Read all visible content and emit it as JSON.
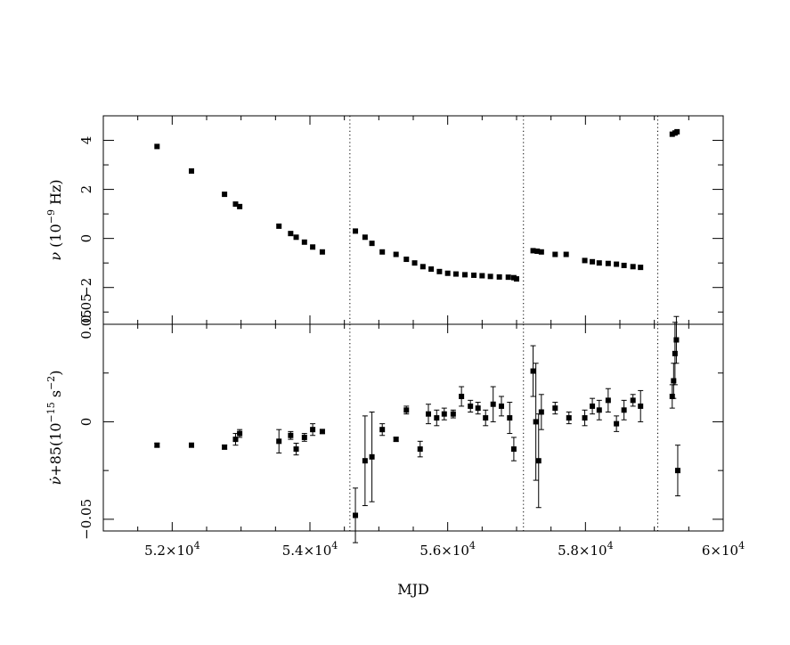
{
  "chart_data": {
    "type": "scatter",
    "x_label": "MJD",
    "x_range": [
      51000,
      60000
    ],
    "x_ticks": [
      52000,
      54000,
      56000,
      58000,
      60000
    ],
    "x_tick_labels": [
      {
        "mantissa": "5.2",
        "times": "×10",
        "exp": "4"
      },
      {
        "mantissa": "5.4",
        "times": "×10",
        "exp": "4"
      },
      {
        "mantissa": "5.6",
        "times": "×10",
        "exp": "4"
      },
      {
        "mantissa": "5.8",
        "times": "×10",
        "exp": "4"
      },
      {
        "mantissa": "6",
        "times": "×10",
        "exp": "4"
      }
    ],
    "glitch_epochs": [
      54580,
      57100,
      59050
    ],
    "panels": [
      {
        "name": "nu",
        "ylabel": {
          "symbol": "ν",
          "pre": " (10",
          "exp": "−9",
          "post": " Hz)"
        },
        "y_range": [
          -3.5,
          5.0
        ],
        "y_ticks": [
          -2,
          0,
          2,
          4
        ],
        "y_tick_labels": [
          "−2",
          "0",
          "2",
          "4"
        ],
        "corner_label": "0.05",
        "points": [
          [
            51780,
            3.75
          ],
          [
            52280,
            2.75
          ],
          [
            52760,
            1.8
          ],
          [
            52920,
            1.4
          ],
          [
            52980,
            1.3
          ],
          [
            53550,
            0.5
          ],
          [
            53720,
            0.2
          ],
          [
            53800,
            0.05
          ],
          [
            53920,
            -0.15
          ],
          [
            54040,
            -0.35
          ],
          [
            54180,
            -0.55
          ],
          [
            54660,
            0.3
          ],
          [
            54800,
            0.05
          ],
          [
            54900,
            -0.2
          ],
          [
            55050,
            -0.55
          ],
          [
            55250,
            -0.65
          ],
          [
            55400,
            -0.85
          ],
          [
            55520,
            -1.0
          ],
          [
            55640,
            -1.15
          ],
          [
            55760,
            -1.25
          ],
          [
            55880,
            -1.35
          ],
          [
            56000,
            -1.42
          ],
          [
            56120,
            -1.45
          ],
          [
            56250,
            -1.48
          ],
          [
            56380,
            -1.5
          ],
          [
            56500,
            -1.52
          ],
          [
            56620,
            -1.55
          ],
          [
            56750,
            -1.57
          ],
          [
            56880,
            -1.58
          ],
          [
            56960,
            -1.6
          ],
          [
            57000,
            -1.65
          ],
          [
            57240,
            -0.5
          ],
          [
            57300,
            -0.52
          ],
          [
            57360,
            -0.55
          ],
          [
            57560,
            -0.65
          ],
          [
            57720,
            -0.65
          ],
          [
            57990,
            -0.9
          ],
          [
            58100,
            -0.95
          ],
          [
            58200,
            -1.0
          ],
          [
            58330,
            -1.02
          ],
          [
            58450,
            -1.05
          ],
          [
            58560,
            -1.1
          ],
          [
            58690,
            -1.15
          ],
          [
            58800,
            -1.18
          ],
          [
            59260,
            4.25
          ],
          [
            59300,
            4.3
          ],
          [
            59330,
            4.35
          ]
        ]
      },
      {
        "name": "nudot",
        "ylabel": {
          "symbol": "ν̇",
          "pre": "+85(10",
          "exp": "−15",
          "post": " s",
          "exp2": "−2",
          "post2": ")"
        },
        "y_range": [
          -0.056,
          0.05
        ],
        "y_ticks": [
          -0.05,
          0,
          0.05
        ],
        "y_tick_labels": [
          "−0.05",
          "0",
          "0.05"
        ],
        "points": [
          [
            51780,
            -0.012,
            0.001
          ],
          [
            52280,
            -0.012,
            0.001
          ],
          [
            52760,
            -0.013,
            0.001
          ],
          [
            52920,
            -0.009,
            0.003
          ],
          [
            52980,
            -0.006,
            0.002
          ],
          [
            53550,
            -0.01,
            0.006
          ],
          [
            53720,
            -0.007,
            0.002
          ],
          [
            53800,
            -0.014,
            0.003
          ],
          [
            53920,
            -0.008,
            0.002
          ],
          [
            54040,
            -0.004,
            0.003
          ],
          [
            54180,
            -0.005,
            0.001
          ],
          [
            54660,
            -0.048,
            0.014
          ],
          [
            54800,
            -0.02,
            0.023
          ],
          [
            54900,
            -0.018,
            0.023
          ],
          [
            55050,
            -0.004,
            0.003
          ],
          [
            55250,
            -0.009,
            0.001
          ],
          [
            55400,
            0.006,
            0.002
          ],
          [
            55600,
            -0.014,
            0.004
          ],
          [
            55720,
            0.004,
            0.005
          ],
          [
            55840,
            0.002,
            0.004
          ],
          [
            55950,
            0.004,
            0.003
          ],
          [
            56080,
            0.004,
            0.002
          ],
          [
            56200,
            0.013,
            0.005
          ],
          [
            56330,
            0.008,
            0.003
          ],
          [
            56440,
            0.007,
            0.003
          ],
          [
            56550,
            0.002,
            0.004
          ],
          [
            56660,
            0.009,
            0.009
          ],
          [
            56780,
            0.008,
            0.005
          ],
          [
            56900,
            0.002,
            0.008
          ],
          [
            56960,
            -0.014,
            0.006
          ],
          [
            57240,
            0.026,
            0.013
          ],
          [
            57280,
            0.0,
            0.03
          ],
          [
            57320,
            -0.02,
            0.024
          ],
          [
            57360,
            0.005,
            0.009
          ],
          [
            57560,
            0.007,
            0.003
          ],
          [
            57760,
            0.002,
            0.003
          ],
          [
            57990,
            0.002,
            0.004
          ],
          [
            58100,
            0.008,
            0.004
          ],
          [
            58200,
            0.006,
            0.005
          ],
          [
            58330,
            0.011,
            0.006
          ],
          [
            58450,
            -0.001,
            0.004
          ],
          [
            58560,
            0.006,
            0.005
          ],
          [
            58690,
            0.011,
            0.003
          ],
          [
            58800,
            0.008,
            0.008
          ],
          [
            59260,
            0.013,
            0.006
          ],
          [
            59280,
            0.021,
            0.009
          ],
          [
            59300,
            0.035,
            0.016
          ],
          [
            59320,
            0.042,
            0.012
          ],
          [
            59340,
            -0.025,
            0.013
          ]
        ]
      }
    ]
  }
}
